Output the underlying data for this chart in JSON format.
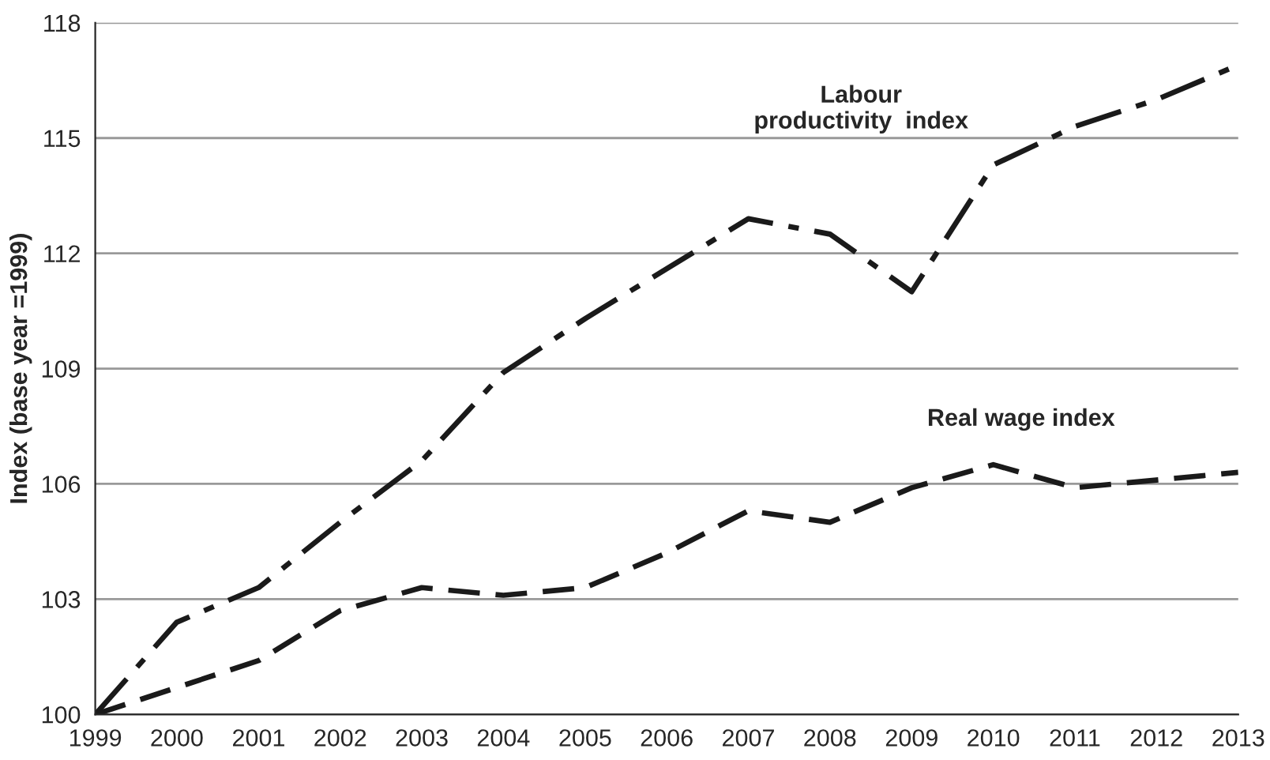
{
  "chart_data": {
    "type": "line",
    "ylabel": "Index (base year =1999)",
    "x": [
      "1999",
      "2000",
      "2001",
      "2002",
      "2003",
      "2004",
      "2005",
      "2006",
      "2007",
      "2008",
      "2009",
      "2010",
      "2011",
      "2012",
      "2013"
    ],
    "series": [
      {
        "color": "#1a1a1a",
        "line_style": "dashdot",
        "values": [
          100,
          102.4,
          103.3,
          105.0,
          106.6,
          108.9,
          110.3,
          111.6,
          112.9,
          112.5,
          111.0,
          114.3,
          115.3,
          116.0,
          116.9
        ]
      },
      {
        "color": "#1a1a1a",
        "line_style": "dashed",
        "values": [
          100,
          100.7,
          101.4,
          102.7,
          103.3,
          103.1,
          103.3,
          104.2,
          105.3,
          105.0,
          105.9,
          106.5,
          105.9,
          106.1,
          106.3
        ]
      }
    ],
    "annotations": [
      "Labour\nproductivity  index",
      "Real wage index"
    ],
    "xlim": [
      "1999",
      "2013"
    ],
    "xticks": [
      "1999",
      "2000",
      "2001",
      "2002",
      "2003",
      "2004",
      "2005",
      "2006",
      "2007",
      "2008",
      "2009",
      "2010",
      "2011",
      "2012",
      "2013"
    ],
    "ylim": [
      100,
      118
    ],
    "yticks": [
      100,
      103,
      106,
      109,
      112,
      115,
      118
    ],
    "grid": "y",
    "legend": false,
    "marker": "none"
  }
}
